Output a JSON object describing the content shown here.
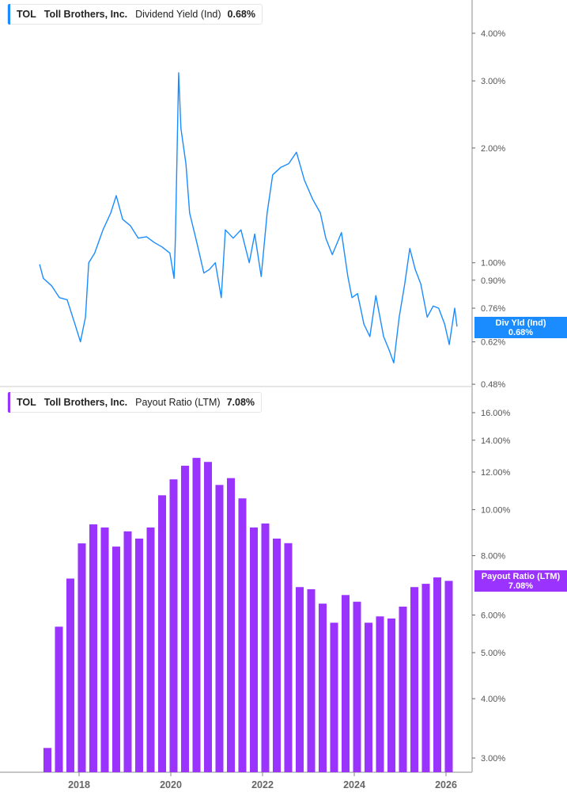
{
  "colors": {
    "yield": "#1a8cff",
    "payout": "#9b33ff",
    "axis": "#b3b3b3"
  },
  "top_legend": {
    "ticker": "TOL",
    "company": "Toll Brothers, Inc.",
    "metric": "Dividend Yield (Ind)",
    "value": "0.68%"
  },
  "top_tag": {
    "label": "Div Yld (Ind)",
    "value": "0.68%"
  },
  "bottom_legend": {
    "ticker": "TOL",
    "company": "Toll Brothers, Inc.",
    "metric": "Payout Ratio (LTM)",
    "value": "7.08%"
  },
  "bottom_tag": {
    "label": "Payout Ratio (LTM)",
    "value": "7.08%"
  },
  "chart_data": [
    {
      "type": "line",
      "scale": "log",
      "ylabel": "",
      "title": "",
      "yticks": [
        "4.00%",
        "3.00%",
        "2.00%",
        "1.00%",
        "0.90%",
        "0.76%",
        "0.62%",
        "0.48%"
      ],
      "ytick_values": [
        4,
        3,
        2,
        1,
        0.9,
        0.76,
        0.62,
        0.48
      ],
      "ylim": [
        0.48,
        4.6
      ],
      "x": [
        2017.14,
        2017.22,
        2017.4,
        2017.57,
        2017.74,
        2017.91,
        2018.03,
        2018.14,
        2018.21,
        2018.34,
        2018.52,
        2018.69,
        2018.81,
        2018.95,
        2019.12,
        2019.29,
        2019.47,
        2019.64,
        2019.81,
        2019.98,
        2020.07,
        2020.1,
        2020.17,
        2020.22,
        2020.33,
        2020.41,
        2020.5,
        2020.59,
        2020.72,
        2020.84,
        2020.97,
        2021.1,
        2021.19,
        2021.36,
        2021.53,
        2021.71,
        2021.83,
        2021.97,
        2022.1,
        2022.22,
        2022.4,
        2022.57,
        2022.74,
        2022.91,
        2023.09,
        2023.26,
        2023.38,
        2023.52,
        2023.72,
        2023.86,
        2023.95,
        2024.07,
        2024.21,
        2024.34,
        2024.47,
        2024.64,
        2024.76,
        2024.86,
        2024.98,
        2025.1,
        2025.21,
        2025.33,
        2025.45,
        2025.59,
        2025.72,
        2025.84,
        2025.97,
        2026.07,
        2026.19,
        2026.24
      ],
      "values": [
        0.99,
        0.91,
        0.87,
        0.81,
        0.8,
        0.69,
        0.62,
        0.72,
        1.0,
        1.06,
        1.22,
        1.35,
        1.5,
        1.3,
        1.25,
        1.16,
        1.17,
        1.13,
        1.1,
        1.06,
        0.91,
        1.16,
        3.15,
        2.25,
        1.82,
        1.35,
        1.22,
        1.1,
        0.94,
        0.96,
        1.0,
        0.81,
        1.22,
        1.16,
        1.22,
        1.0,
        1.19,
        0.92,
        1.35,
        1.7,
        1.78,
        1.82,
        1.95,
        1.65,
        1.47,
        1.35,
        1.16,
        1.05,
        1.2,
        0.92,
        0.81,
        0.83,
        0.69,
        0.64,
        0.82,
        0.64,
        0.59,
        0.546,
        0.72,
        0.88,
        1.09,
        0.96,
        0.88,
        0.72,
        0.77,
        0.76,
        0.69,
        0.61,
        0.76,
        0.68
      ]
    },
    {
      "type": "bar",
      "scale": "log",
      "ylabel": "",
      "title": "",
      "yticks": [
        "16.00%",
        "14.00%",
        "12.00%",
        "10.00%",
        "8.00%",
        "6.00%",
        "5.00%",
        "4.00%",
        "3.00%"
      ],
      "ytick_values": [
        16,
        14,
        12,
        10,
        8,
        6,
        5,
        4,
        3
      ],
      "ylim": [
        2.85,
        17.5
      ],
      "xticks": [
        "2018",
        "2020",
        "2022",
        "2024",
        "2026"
      ],
      "xtick_values": [
        2018,
        2020,
        2022,
        2024,
        2026
      ],
      "xlim": [
        2016.28,
        2027.0
      ],
      "x": [
        2017.31,
        2017.56,
        2017.81,
        2018.06,
        2018.31,
        2018.56,
        2018.81,
        2019.06,
        2019.31,
        2019.56,
        2019.81,
        2020.06,
        2020.31,
        2020.56,
        2020.81,
        2021.06,
        2021.31,
        2021.56,
        2021.81,
        2022.06,
        2022.31,
        2022.56,
        2022.81,
        2023.06,
        2023.31,
        2023.56,
        2023.81,
        2024.06,
        2024.31,
        2024.56,
        2024.81,
        2025.06,
        2025.31,
        2025.56,
        2025.81,
        2026.06
      ],
      "values": [
        3.15,
        5.67,
        7.16,
        8.49,
        9.31,
        9.17,
        8.36,
        9.0,
        8.69,
        9.17,
        10.72,
        11.58,
        12.37,
        12.85,
        12.6,
        11.27,
        11.65,
        10.56,
        9.17,
        9.35,
        8.69,
        8.5,
        6.87,
        6.8,
        6.34,
        5.78,
        6.61,
        6.4,
        5.78,
        5.96,
        5.9,
        6.25,
        6.87,
        6.98,
        7.2,
        7.08
      ]
    }
  ]
}
